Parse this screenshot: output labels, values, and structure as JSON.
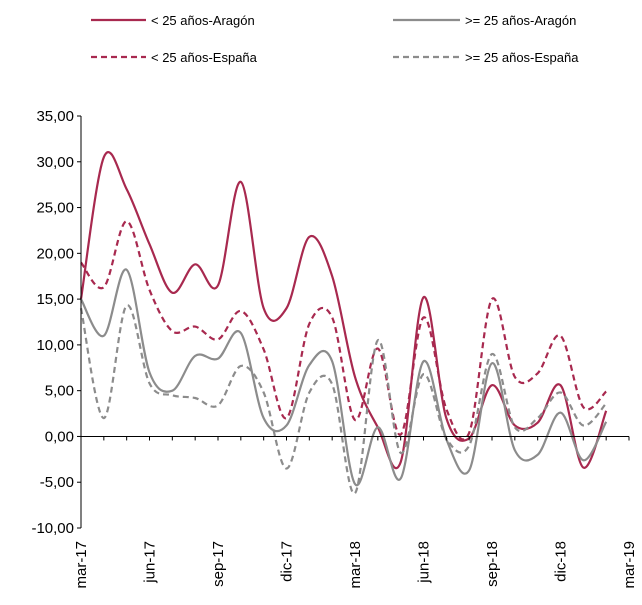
{
  "chart_data": {
    "type": "line",
    "title": "",
    "xlabel": "",
    "ylabel": "",
    "ylim": [
      -10,
      35
    ],
    "yticks": [
      35,
      30,
      25,
      20,
      15,
      10,
      5,
      0,
      -5,
      -10
    ],
    "ytick_labels": [
      "35,00",
      "30,00",
      "25,00",
      "20,00",
      "15,00",
      "10,00",
      "5,00",
      "0,00",
      "-5,00",
      "-10,00"
    ],
    "xticks": [
      0,
      3,
      6,
      9,
      12,
      15,
      18,
      21,
      24
    ],
    "xtick_labels": [
      "mar-17",
      "jun-17",
      "sep-17",
      "dic-17",
      "mar-18",
      "jun-18",
      "sep-18",
      "dic-18",
      "mar-19"
    ],
    "grid": false,
    "legend_position": "top",
    "series": [
      {
        "name": "< 25 años-Aragón",
        "color": "#a8294f",
        "dash": "solid",
        "x": [
          0,
          1,
          2,
          3,
          4,
          5,
          6,
          7,
          8,
          9,
          10,
          11,
          12,
          13,
          14,
          15,
          16,
          17,
          18,
          19,
          20,
          21,
          22,
          23,
          24
        ],
        "values": [
          15.0,
          30.5,
          27.0,
          21.0,
          15.7,
          18.8,
          16.5,
          27.8,
          14.0,
          14.0,
          21.8,
          17.5,
          6.5,
          1.0,
          -2.8,
          15.2,
          2.0,
          -0.2,
          5.6,
          1.2,
          1.5,
          5.6,
          -3.4,
          2.8,
          null
        ]
      },
      {
        "name": ">= 25 años-Aragón",
        "color": "#8c8c8c",
        "dash": "solid",
        "x": [
          0,
          1,
          2,
          3,
          4,
          5,
          6,
          7,
          8,
          9,
          10,
          11,
          12,
          13,
          14,
          15,
          16,
          17,
          18,
          19,
          20,
          21,
          22,
          23,
          24
        ],
        "values": [
          15.0,
          11.0,
          18.2,
          7.0,
          5.0,
          8.8,
          8.5,
          11.3,
          2.0,
          1.2,
          7.8,
          8.2,
          -5.2,
          1.0,
          -4.6,
          8.2,
          -0.3,
          -3.7,
          8.0,
          -1.5,
          -2.0,
          2.6,
          -2.6,
          1.6,
          null
        ]
      },
      {
        "name": "< 25 años-España",
        "color": "#a8294f",
        "dash": "dashed",
        "x": [
          0,
          1,
          2,
          3,
          4,
          5,
          6,
          7,
          8,
          9,
          10,
          11,
          12,
          13,
          14,
          15,
          16,
          17,
          18,
          19,
          20,
          21,
          22,
          23,
          24
        ],
        "values": [
          19.0,
          16.3,
          23.5,
          16.0,
          11.5,
          12.0,
          10.6,
          13.7,
          9.5,
          2.0,
          12.3,
          13.0,
          1.8,
          9.6,
          0.2,
          13.0,
          3.0,
          0.4,
          15.0,
          6.5,
          6.9,
          11.0,
          3.2,
          4.9,
          null
        ]
      },
      {
        "name": ">= 25 años-España",
        "color": "#8c8c8c",
        "dash": "dashed",
        "x": [
          0,
          1,
          2,
          3,
          4,
          5,
          6,
          7,
          8,
          9,
          10,
          11,
          12,
          13,
          14,
          15,
          16,
          17,
          18,
          19,
          20,
          21,
          22,
          23,
          24
        ],
        "values": [
          14.0,
          2.0,
          14.3,
          5.8,
          4.5,
          4.2,
          3.4,
          7.7,
          4.8,
          -3.5,
          4.8,
          5.7,
          -6.2,
          10.5,
          -1.8,
          6.8,
          -0.2,
          -1.0,
          9.0,
          1.0,
          2.0,
          4.8,
          1.2,
          3.6,
          null
        ]
      }
    ]
  }
}
